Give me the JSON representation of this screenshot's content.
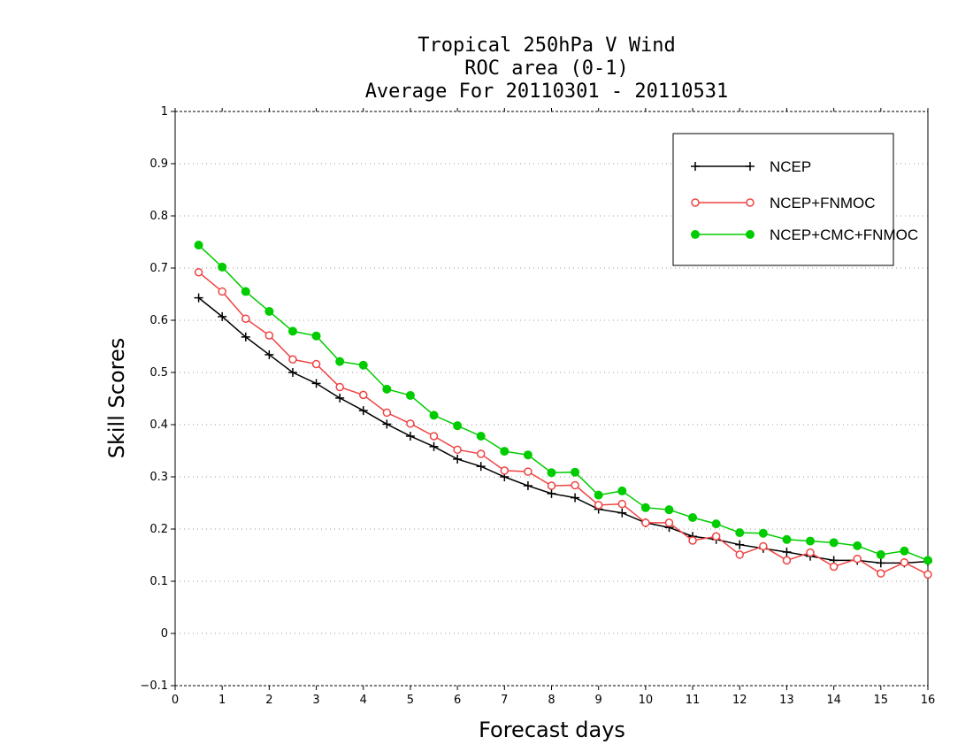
{
  "chart_data": {
    "type": "line",
    "title": [
      "Tropical 250hPa V Wind",
      "ROC area (0-1)",
      "Average For 20110301 - 20110531"
    ],
    "xlabel": "Forecast days",
    "ylabel": "Skill Scores",
    "xlim": [
      0,
      16
    ],
    "ylim": [
      -0.1,
      1
    ],
    "xticks": [
      0,
      1,
      2,
      3,
      4,
      5,
      6,
      7,
      8,
      9,
      10,
      11,
      12,
      13,
      14,
      15,
      16
    ],
    "xtick_labels": [
      "0",
      "1",
      "2",
      "3",
      "4",
      "5",
      "6",
      "7",
      "8",
      "9",
      "10",
      "11",
      "12",
      "13",
      "14",
      "15",
      "16"
    ],
    "yticks": [
      -0.1,
      0,
      0.1,
      0.2,
      0.3,
      0.4,
      0.5,
      0.6,
      0.7,
      0.8,
      0.9,
      1
    ],
    "ytick_labels": [
      "−0.1",
      "0",
      "0.1",
      "0.2",
      "0.3",
      "0.4",
      "0.5",
      "0.6",
      "0.7",
      "0.8",
      "0.9",
      "1"
    ],
    "grid": "dotted horizontal",
    "legend_position": "top-right",
    "x": [
      0.5,
      1,
      1.5,
      2,
      2.5,
      3,
      3.5,
      4,
      4.5,
      5,
      5.5,
      6,
      6.5,
      7,
      7.5,
      8,
      8.5,
      9,
      9.5,
      10,
      10.5,
      11,
      11.5,
      12,
      12.5,
      13,
      13.5,
      14,
      14.5,
      15,
      15.5,
      16
    ],
    "series": [
      {
        "name": "NCEP",
        "color": "#000000",
        "marker": "plus",
        "values": [
          0.643,
          0.607,
          0.568,
          0.534,
          0.5,
          0.479,
          0.451,
          0.427,
          0.401,
          0.378,
          0.358,
          0.334,
          0.32,
          0.3,
          0.283,
          0.268,
          0.26,
          0.238,
          0.231,
          0.212,
          0.203,
          0.186,
          0.18,
          0.17,
          0.163,
          0.156,
          0.148,
          0.14,
          0.14,
          0.135,
          0.135,
          0.138
        ]
      },
      {
        "name": "NCEP+FNMOC",
        "color": "#ee4444",
        "marker": "open-circle",
        "values": [
          0.692,
          0.655,
          0.603,
          0.571,
          0.525,
          0.516,
          0.472,
          0.457,
          0.423,
          0.402,
          0.378,
          0.352,
          0.344,
          0.312,
          0.31,
          0.283,
          0.284,
          0.246,
          0.248,
          0.212,
          0.212,
          0.178,
          0.186,
          0.151,
          0.167,
          0.14,
          0.155,
          0.128,
          0.143,
          0.115,
          0.136,
          0.113
        ]
      },
      {
        "name": "NCEP+CMC+FNMOC",
        "color": "#00cc00",
        "marker": "filled-circle",
        "values": [
          0.744,
          0.702,
          0.655,
          0.617,
          0.579,
          0.57,
          0.521,
          0.514,
          0.468,
          0.456,
          0.418,
          0.398,
          0.378,
          0.349,
          0.342,
          0.308,
          0.309,
          0.265,
          0.273,
          0.241,
          0.237,
          0.222,
          0.21,
          0.193,
          0.192,
          0.18,
          0.177,
          0.174,
          0.168,
          0.151,
          0.158,
          0.14
        ]
      }
    ]
  }
}
